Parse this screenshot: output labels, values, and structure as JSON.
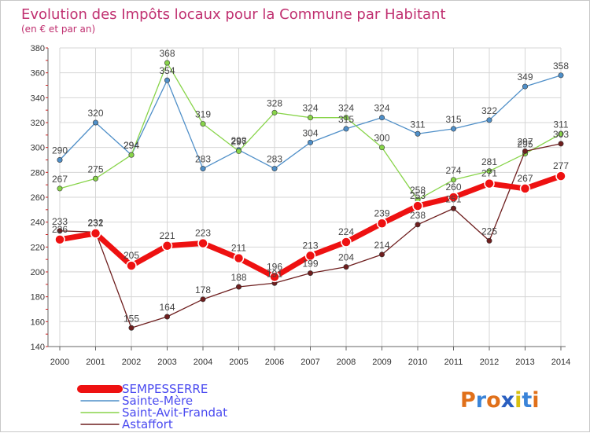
{
  "chart_data": {
    "type": "line",
    "title": "Evolution des Impôts locaux pour la Commune par Habitant",
    "subtitle": "(en € et par an)",
    "xlabel": "",
    "ylabel": "",
    "categories": [
      "2000",
      "2001",
      "2002",
      "2003",
      "2004",
      "2005",
      "2006",
      "2007",
      "2008",
      "2009",
      "2010",
      "2011",
      "2012",
      "2013",
      "2014"
    ],
    "ylim": [
      140,
      380
    ],
    "yticks": [
      140,
      160,
      180,
      200,
      220,
      240,
      260,
      280,
      300,
      320,
      340,
      360,
      380
    ],
    "grid": true,
    "legend_position": "bottom-left",
    "series": [
      {
        "name": "SEMPESSERRE",
        "color": "#ee1111",
        "values": [
          226,
          231,
          205,
          221,
          223,
          211,
          196,
          213,
          224,
          239,
          253,
          260,
          271,
          267,
          277
        ]
      },
      {
        "name": "Sainte-Mère",
        "color": "#4f8fc8",
        "values": [
          290,
          320,
          294,
          354,
          283,
          298,
          283,
          304,
          315,
          324,
          311,
          315,
          322,
          349,
          358
        ]
      },
      {
        "name": "Saint-Avit-Frandat",
        "color": "#88d44a",
        "values": [
          267,
          275,
          294,
          368,
          319,
          297,
          328,
          324,
          324,
          300,
          258,
          274,
          281,
          295,
          311
        ]
      },
      {
        "name": "Astaffort",
        "color": "#6e1e1e",
        "values": [
          233,
          232,
          155,
          164,
          178,
          188,
          191,
          199,
          204,
          214,
          238,
          251,
          225,
          297,
          303
        ]
      }
    ]
  },
  "logo": {
    "text": "Proxiti"
  }
}
